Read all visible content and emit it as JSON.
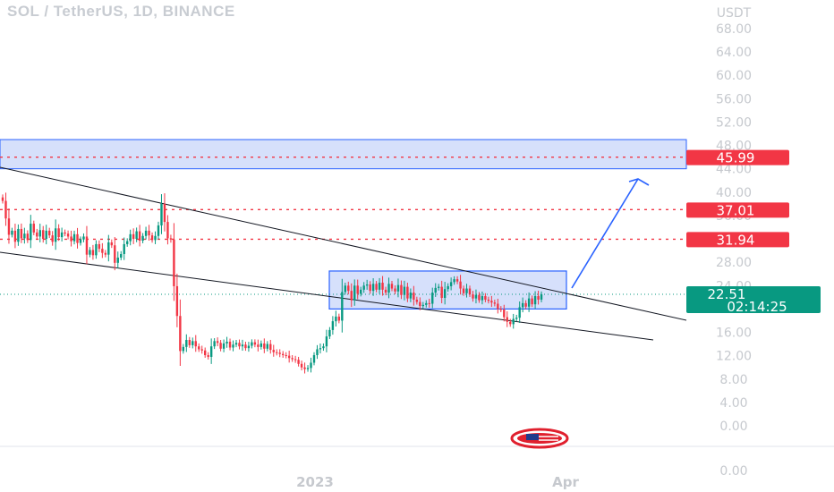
{
  "header": {
    "title": "SOL / TetherUS, 1D, BINANCE"
  },
  "chart_data": {
    "type": "candlestick",
    "symbol": "SOL / TetherUS",
    "interval": "1D",
    "exchange": "BINANCE",
    "currency_label": "USDT",
    "y_ticks": [
      "68.00",
      "64.00",
      "60.00",
      "56.00",
      "52.00",
      "48.00",
      "44.00",
      "40.00",
      "36.00",
      "28.00",
      "24.00",
      "16.00",
      "12.00",
      "8.00",
      "4.00",
      "0.00"
    ],
    "y_tick_values": [
      68,
      64,
      60,
      56,
      52,
      48,
      44,
      40,
      36,
      28,
      24,
      16,
      12,
      8,
      4,
      0
    ],
    "bottom_tick": "0.00",
    "x_ticks": [
      "2023",
      "Apr"
    ],
    "ylim": [
      0,
      72
    ],
    "closes": [
      38.5,
      35.5,
      32.7,
      33.4,
      31.5,
      33.7,
      32.1,
      32.9,
      31.8,
      34.6,
      33.1,
      32.4,
      33.5,
      32.0,
      33.4,
      32.6,
      31.5,
      33.8,
      32.3,
      33.1,
      32.9,
      32.4,
      31.6,
      32.8,
      31.3,
      31.9,
      32.4,
      29.3,
      30.1,
      29.2,
      31.1,
      30.3,
      29.6,
      29.3,
      31.4,
      30.9,
      27.9,
      28.8,
      29.4,
      31.1,
      31.6,
      32.8,
      32.0,
      33.3,
      31.7,
      32.5,
      33.4,
      32.6,
      31.8,
      32.5,
      34.3,
      38.0,
      34.9,
      32.1,
      31.9,
      23.9,
      18.8,
      12.8,
      13.5,
      14.7,
      13.8,
      14.5,
      13.6,
      13.1,
      12.9,
      12.1,
      11.8,
      13.6,
      14.5,
      14.2,
      13.2,
      14.1,
      14.4,
      13.4,
      13.9,
      14.2,
      13.6,
      13.9,
      13.3,
      13.7,
      14.3,
      13.9,
      13.5,
      14.1,
      13.2,
      14.0,
      13.0,
      12.6,
      12.5,
      12.3,
      12.1,
      12.0,
      11.6,
      11.4,
      11.3,
      10.6,
      10.0,
      9.7,
      9.9,
      10.8,
      12.1,
      13.1,
      13.3,
      13.6,
      15.3,
      16.4,
      17.9,
      18.7,
      18.0,
      22.9,
      24.0,
      23.1,
      21.5,
      24.0,
      22.6,
      23.3,
      24.0,
      24.2,
      23.1,
      24.3,
      23.3,
      24.5,
      23.3,
      22.8,
      24.3,
      23.5,
      23.0,
      24.1,
      22.4,
      23.8,
      21.8,
      22.8,
      21.6,
      21.2,
      20.5,
      20.7,
      21.0,
      20.9,
      22.8,
      23.6,
      23.8,
      21.9,
      23.4,
      23.9,
      24.6,
      25.1,
      24.7,
      23.5,
      22.7,
      23.5,
      22.5,
      21.8,
      22.4,
      21.5,
      22.2,
      21.6,
      21.4,
      21.1,
      20.9,
      20.0,
      19.9,
      18.6,
      17.8,
      17.4,
      18.3,
      18.5,
      20.3,
      21.0,
      20.4,
      21.8,
      20.8,
      22.2,
      21.6,
      22.5
    ],
    "price_labels": [
      {
        "text": "45.99",
        "value": 45.99,
        "color": "#f23645"
      },
      {
        "text": "37.01",
        "value": 37.01,
        "color": "#f23645"
      },
      {
        "text": "31.94",
        "value": 31.94,
        "color": "#f23645"
      }
    ],
    "current_price": {
      "price": "22.51",
      "countdown": "02:14:25",
      "color": "#089981"
    },
    "colors": {
      "up": "#089981",
      "down": "#f23645",
      "zone_fill": "#d6e0fb",
      "zone_stroke": "#2962ff",
      "arrow": "#2962ff",
      "trendline": "#131722"
    }
  }
}
